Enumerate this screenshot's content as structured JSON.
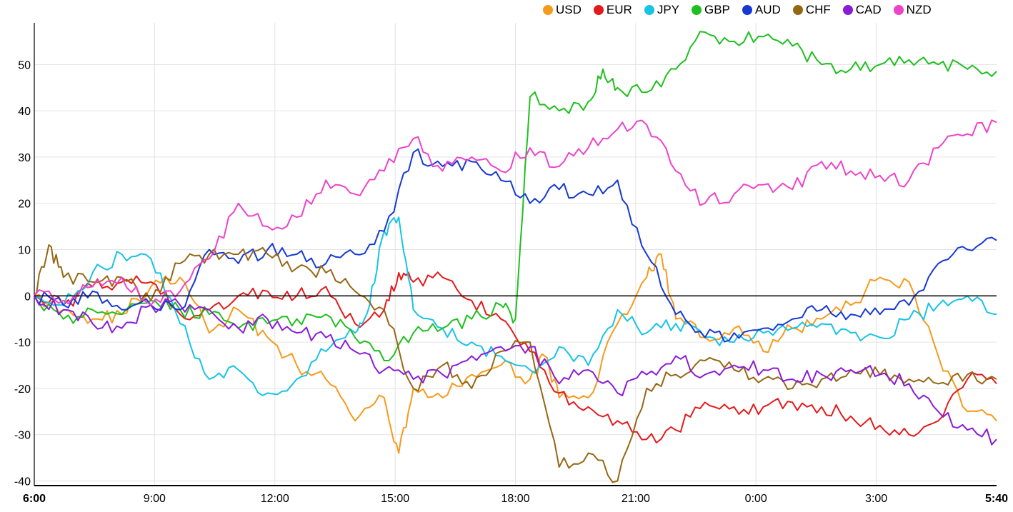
{
  "chart_data": {
    "type": "line",
    "title": "",
    "xlabel": "",
    "ylabel": "",
    "x_ticks": [
      "6:00",
      "9:00",
      "12:00",
      "15:00",
      "18:00",
      "21:00",
      "0:00",
      "3:00",
      "5:40"
    ],
    "y_ticks": [
      -40,
      -30,
      -20,
      -10,
      0,
      10,
      20,
      30,
      40,
      50
    ],
    "ylim": [
      -41,
      59
    ],
    "x_range_hours": [
      0,
      23.667
    ],
    "legend_position": "top-right",
    "grid": true,
    "series": [
      {
        "name": "USD",
        "color": "#f59a1b",
        "points": [
          [
            0,
            0
          ],
          [
            1,
            -3
          ],
          [
            2,
            -5
          ],
          [
            3,
            -4
          ],
          [
            4,
            2
          ],
          [
            5,
            4
          ],
          [
            6,
            -8
          ],
          [
            7,
            -3
          ],
          [
            8,
            -9
          ],
          [
            9,
            -15
          ],
          [
            10,
            -18
          ],
          [
            11,
            -27
          ],
          [
            12,
            -22
          ],
          [
            12.5,
            -34
          ],
          [
            13,
            -20
          ],
          [
            14,
            -22
          ],
          [
            15,
            -17
          ],
          [
            16,
            -15
          ],
          [
            17,
            -18
          ],
          [
            17.5,
            -13
          ],
          [
            18,
            -22
          ],
          [
            19,
            -22
          ],
          [
            20,
            -6
          ],
          [
            21,
            4
          ],
          [
            21.5,
            9
          ],
          [
            22,
            -5
          ],
          [
            23,
            -9
          ],
          [
            24,
            -7
          ],
          [
            25,
            -12
          ],
          [
            26,
            -7
          ],
          [
            27,
            -5
          ],
          [
            28,
            -2
          ],
          [
            29,
            4
          ],
          [
            30,
            3
          ],
          [
            31,
            -13
          ],
          [
            32,
            -25
          ],
          [
            33,
            -27
          ]
        ]
      },
      {
        "name": "EUR",
        "color": "#e41a1c",
        "points": [
          [
            0,
            0
          ],
          [
            1,
            -2
          ],
          [
            2,
            2
          ],
          [
            3,
            3
          ],
          [
            4,
            3
          ],
          [
            5,
            -4
          ],
          [
            6,
            -3
          ],
          [
            7,
            0
          ],
          [
            8,
            1
          ],
          [
            9,
            0
          ],
          [
            10,
            2
          ],
          [
            11,
            -6
          ],
          [
            12,
            -3
          ],
          [
            12.5,
            5
          ],
          [
            13,
            3
          ],
          [
            14,
            4
          ],
          [
            15,
            -1
          ],
          [
            16,
            -5
          ],
          [
            17,
            -12
          ],
          [
            18,
            -21
          ],
          [
            19,
            -24
          ],
          [
            20,
            -27
          ],
          [
            21,
            -31
          ],
          [
            22,
            -29
          ],
          [
            23,
            -23
          ],
          [
            24,
            -24
          ],
          [
            25,
            -24
          ],
          [
            26,
            -23
          ],
          [
            27,
            -24
          ],
          [
            28,
            -26
          ],
          [
            29,
            -28
          ],
          [
            30,
            -30
          ],
          [
            31,
            -27
          ],
          [
            32,
            -18
          ],
          [
            33,
            -19
          ]
        ]
      },
      {
        "name": "JPY",
        "color": "#17c3e6",
        "points": [
          [
            0,
            0
          ],
          [
            1,
            -2
          ],
          [
            2,
            5
          ],
          [
            3,
            9
          ],
          [
            4,
            8
          ],
          [
            5,
            -6
          ],
          [
            6,
            -18
          ],
          [
            7,
            -16
          ],
          [
            8,
            -21
          ],
          [
            9,
            -18
          ],
          [
            10,
            -12
          ],
          [
            11,
            -8
          ],
          [
            11.5,
            -2
          ],
          [
            12,
            14
          ],
          [
            12.5,
            17
          ],
          [
            13,
            -3
          ],
          [
            14,
            -7
          ],
          [
            15,
            -10
          ],
          [
            16,
            -13
          ],
          [
            17,
            -16
          ],
          [
            18,
            -11
          ],
          [
            19,
            -15
          ],
          [
            20,
            -3
          ],
          [
            21,
            -8
          ],
          [
            22,
            -6
          ],
          [
            23,
            -9
          ],
          [
            24,
            -10
          ],
          [
            25,
            -8
          ],
          [
            26,
            -7
          ],
          [
            27,
            -6
          ],
          [
            28,
            -8
          ],
          [
            29,
            -9
          ],
          [
            30,
            -5
          ],
          [
            31,
            -2
          ],
          [
            32,
            0
          ],
          [
            33,
            -4
          ]
        ]
      },
      {
        "name": "GBP",
        "color": "#1fbf1f",
        "points": [
          [
            0,
            0
          ],
          [
            1,
            -5
          ],
          [
            2,
            -3
          ],
          [
            3,
            -4
          ],
          [
            4,
            -1
          ],
          [
            5,
            -3
          ],
          [
            6,
            -4
          ],
          [
            7,
            -7
          ],
          [
            8,
            -6
          ],
          [
            9,
            -5
          ],
          [
            10,
            -4
          ],
          [
            11,
            -9
          ],
          [
            12,
            -14
          ],
          [
            13,
            -8
          ],
          [
            14,
            -7
          ],
          [
            15,
            -5
          ],
          [
            16,
            -2
          ],
          [
            16.5,
            -5
          ],
          [
            17,
            43
          ],
          [
            18,
            40
          ],
          [
            19,
            42
          ],
          [
            19.5,
            49
          ],
          [
            20,
            45
          ],
          [
            21,
            44
          ],
          [
            22,
            49
          ],
          [
            23,
            57
          ],
          [
            24,
            55
          ],
          [
            25,
            56
          ],
          [
            26,
            54
          ],
          [
            27,
            50
          ],
          [
            28,
            49
          ],
          [
            29,
            50
          ],
          [
            30,
            51
          ],
          [
            31,
            50
          ],
          [
            32,
            49
          ],
          [
            33,
            48.5
          ]
        ]
      },
      {
        "name": "AUD",
        "color": "#1639d4",
        "points": [
          [
            0,
            0
          ],
          [
            1,
            -2
          ],
          [
            2,
            1
          ],
          [
            3,
            -3
          ],
          [
            4,
            -2
          ],
          [
            5,
            -3
          ],
          [
            6,
            10
          ],
          [
            7,
            7
          ],
          [
            8,
            10
          ],
          [
            9,
            9
          ],
          [
            10,
            7
          ],
          [
            11,
            9
          ],
          [
            12,
            14
          ],
          [
            13,
            31
          ],
          [
            14,
            28
          ],
          [
            15,
            29
          ],
          [
            16,
            25
          ],
          [
            17,
            20
          ],
          [
            18,
            23
          ],
          [
            19,
            22
          ],
          [
            20,
            25
          ],
          [
            21,
            9
          ],
          [
            22,
            -4
          ],
          [
            23,
            -9
          ],
          [
            24,
            -8
          ],
          [
            25,
            -7
          ],
          [
            26,
            -5
          ],
          [
            27,
            -3
          ],
          [
            28,
            -4
          ],
          [
            29,
            -4
          ],
          [
            30,
            -2
          ],
          [
            31,
            7
          ],
          [
            32,
            10
          ],
          [
            33,
            12
          ]
        ]
      },
      {
        "name": "CHF",
        "color": "#956713",
        "points": [
          [
            0,
            0
          ],
          [
            0.5,
            11
          ],
          [
            1,
            4
          ],
          [
            2,
            3
          ],
          [
            3,
            4
          ],
          [
            4,
            -1
          ],
          [
            5,
            7
          ],
          [
            6,
            9
          ],
          [
            7,
            9
          ],
          [
            8,
            9
          ],
          [
            9,
            6
          ],
          [
            10,
            5
          ],
          [
            11,
            1
          ],
          [
            12,
            -3
          ],
          [
            13,
            -20
          ],
          [
            14,
            -15
          ],
          [
            15,
            -20
          ],
          [
            16,
            -12
          ],
          [
            17,
            -10
          ],
          [
            18,
            -37
          ],
          [
            19,
            -34
          ],
          [
            20,
            -40
          ],
          [
            21,
            -20
          ],
          [
            22,
            -17
          ],
          [
            23,
            -14
          ],
          [
            24,
            -16
          ],
          [
            25,
            -18
          ],
          [
            26,
            -20
          ],
          [
            27,
            -18
          ],
          [
            28,
            -16
          ],
          [
            29,
            -17
          ],
          [
            30,
            -18
          ],
          [
            31,
            -19
          ],
          [
            32,
            -17
          ],
          [
            33,
            -18
          ]
        ]
      },
      {
        "name": "CAD",
        "color": "#8b1cd6",
        "points": [
          [
            0,
            0
          ],
          [
            1,
            -3
          ],
          [
            2,
            -6
          ],
          [
            3,
            -7
          ],
          [
            4,
            -2
          ],
          [
            5,
            -2
          ],
          [
            6,
            -3
          ],
          [
            7,
            -7
          ],
          [
            8,
            -5
          ],
          [
            9,
            -8
          ],
          [
            10,
            -9
          ],
          [
            11,
            -12
          ],
          [
            12,
            -16
          ],
          [
            13,
            -18
          ],
          [
            14,
            -17
          ],
          [
            15,
            -13
          ],
          [
            16,
            -11
          ],
          [
            17,
            -11
          ],
          [
            18,
            -19
          ],
          [
            19,
            -16
          ],
          [
            20,
            -21
          ],
          [
            21,
            -17
          ],
          [
            22,
            -13
          ],
          [
            23,
            -17
          ],
          [
            24,
            -15
          ],
          [
            25,
            -16
          ],
          [
            26,
            -18
          ],
          [
            27,
            -17
          ],
          [
            28,
            -16
          ],
          [
            29,
            -17
          ],
          [
            30,
            -19
          ],
          [
            31,
            -25
          ],
          [
            32,
            -29
          ],
          [
            33,
            -31
          ]
        ]
      },
      {
        "name": "NZD",
        "color": "#ed43c9",
        "points": [
          [
            0,
            0
          ],
          [
            1,
            -1
          ],
          [
            2,
            2
          ],
          [
            3,
            4
          ],
          [
            4,
            -2
          ],
          [
            5,
            1
          ],
          [
            6,
            8
          ],
          [
            7,
            20
          ],
          [
            8,
            15
          ],
          [
            9,
            17
          ],
          [
            10,
            25
          ],
          [
            11,
            22
          ],
          [
            12,
            27
          ],
          [
            13,
            34
          ],
          [
            14,
            27
          ],
          [
            15,
            30
          ],
          [
            16,
            27
          ],
          [
            17,
            32
          ],
          [
            18,
            28
          ],
          [
            19,
            32
          ],
          [
            20,
            36
          ],
          [
            21,
            37
          ],
          [
            22,
            27
          ],
          [
            23,
            20
          ],
          [
            24,
            22
          ],
          [
            25,
            24
          ],
          [
            26,
            23
          ],
          [
            27,
            29
          ],
          [
            28,
            27
          ],
          [
            29,
            26
          ],
          [
            30,
            25
          ],
          [
            31,
            32
          ],
          [
            32,
            35
          ],
          [
            33,
            37.5
          ]
        ]
      }
    ]
  }
}
